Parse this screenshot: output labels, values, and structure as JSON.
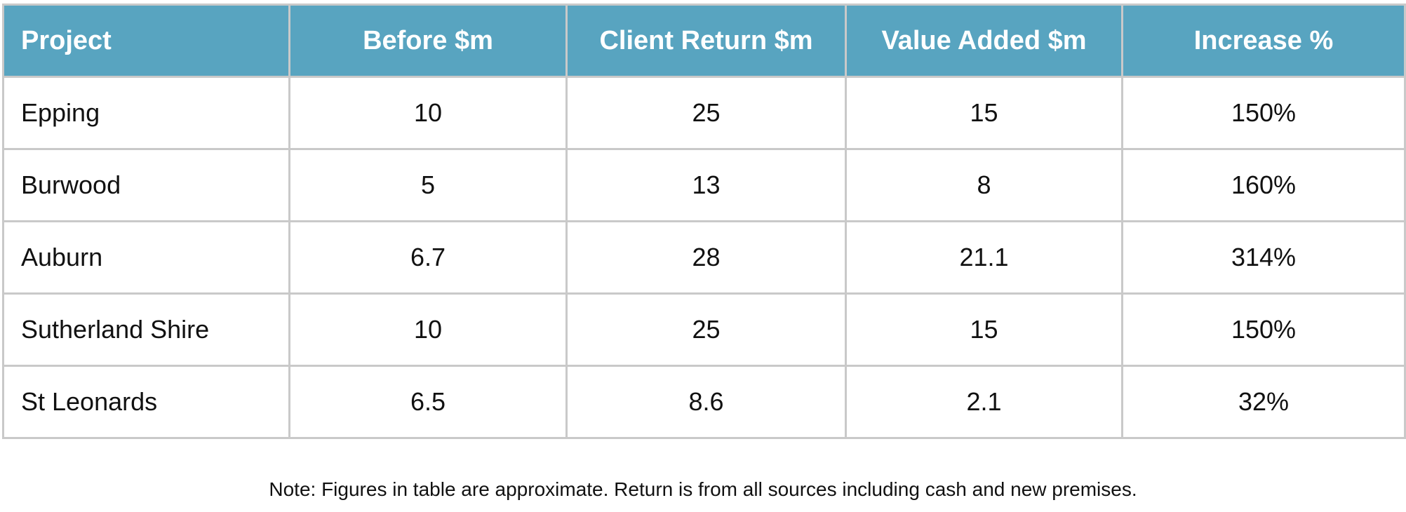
{
  "table": {
    "header": [
      "Project",
      "Before $m",
      "Client Return $m",
      "Value Added $m",
      "Increase %"
    ],
    "rows": [
      [
        "Epping",
        "10",
        "25",
        "15",
        "150%"
      ],
      [
        "Burwood",
        "5",
        "13",
        "8",
        "160%"
      ],
      [
        "Auburn",
        "6.7",
        "28",
        "21.1",
        "314%"
      ],
      [
        "Sutherland Shire",
        "10",
        "25",
        "15",
        "150%"
      ],
      [
        "St Leonards",
        "6.5",
        "8.6",
        "2.1",
        "32%"
      ]
    ]
  },
  "note": "Note: Figures in table are approximate. Return is from all sources including cash and new premises."
}
